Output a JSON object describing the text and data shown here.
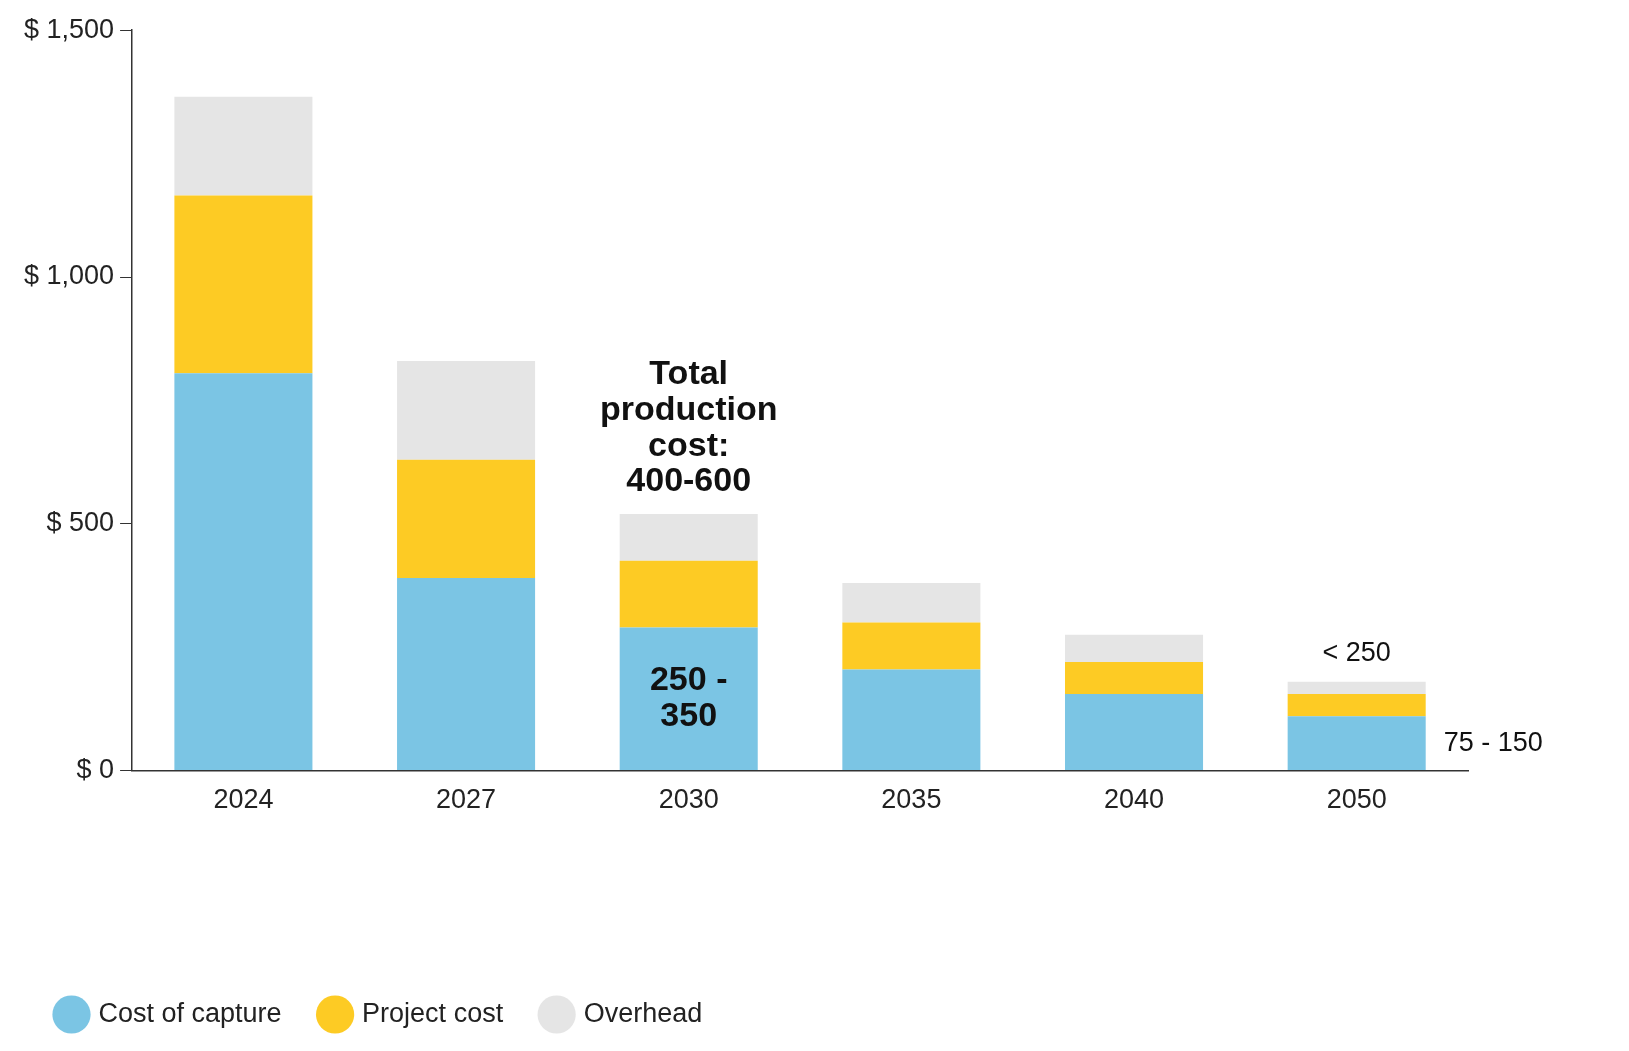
{
  "chart_data": {
    "type": "bar",
    "stacked": true,
    "categories": [
      "2024",
      "2027",
      "2030",
      "2035",
      "2040",
      "2050"
    ],
    "series": [
      {
        "name": "Cost of capture",
        "color": "#7bc5e4",
        "values": [
          805,
          390,
          290,
          205,
          155,
          110
        ]
      },
      {
        "name": "Project cost",
        "color": "#fdcb24",
        "values": [
          360,
          240,
          135,
          95,
          65,
          45
        ]
      },
      {
        "name": "Overhead",
        "color": "#e5e5e5",
        "values": [
          200,
          200,
          95,
          80,
          55,
          25
        ]
      }
    ],
    "ylim": [
      0,
      1500
    ],
    "yticks": [
      {
        "value": 0,
        "label": "$ 0"
      },
      {
        "value": 500,
        "label": "$ 500"
      },
      {
        "value": 1000,
        "label": "$ 1,000"
      },
      {
        "value": 1500,
        "label": "$ 1,500"
      }
    ],
    "grid": false,
    "legend": "bottom left",
    "annotations": [
      {
        "text": "Total production cost: 400-600",
        "x": "2030",
        "y": 520
      },
      "250 - 350",
      {
        "text": "< 250",
        "x": "2050",
        "y": 180
      },
      "75 - 150"
    ]
  }
}
